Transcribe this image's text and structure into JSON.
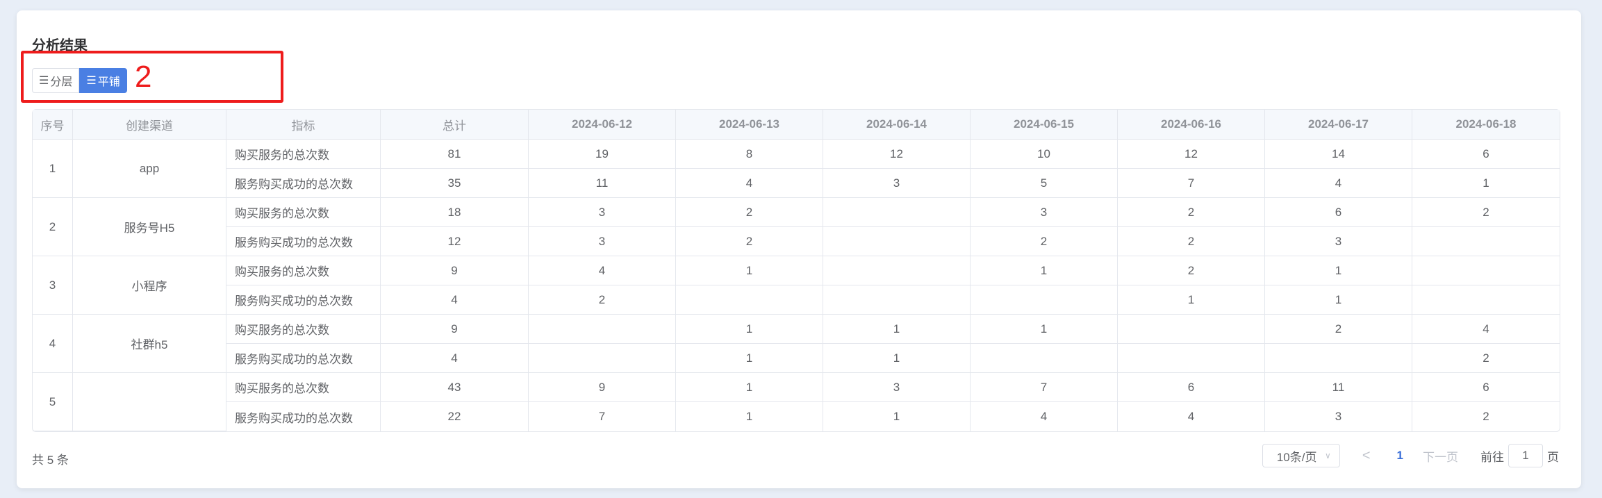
{
  "title": "分析结果",
  "annotation": {
    "label": "2",
    "color": "#ee1c1c"
  },
  "view_toggle": {
    "layered": "分层",
    "flat": "平铺",
    "active": "flat",
    "icon": "list-icon",
    "accent": "#4a7fe3"
  },
  "table": {
    "headers": [
      "序号",
      "创建渠道",
      "指标",
      "总计",
      "2024-06-12",
      "2024-06-13",
      "2024-06-14",
      "2024-06-15",
      "2024-06-16",
      "2024-06-17",
      "2024-06-18"
    ],
    "groups": [
      {
        "index": "1",
        "channel": "app",
        "rows": [
          {
            "metric": "购买服务的总次数",
            "values": [
              "81",
              "19",
              "8",
              "12",
              "10",
              "12",
              "14",
              "6"
            ]
          },
          {
            "metric": "服务购买成功的总次数",
            "values": [
              "35",
              "11",
              "4",
              "3",
              "5",
              "7",
              "4",
              "1"
            ]
          }
        ]
      },
      {
        "index": "2",
        "channel": "服务号H5",
        "rows": [
          {
            "metric": "购买服务的总次数",
            "values": [
              "18",
              "3",
              "2",
              "",
              "3",
              "2",
              "6",
              "2"
            ]
          },
          {
            "metric": "服务购买成功的总次数",
            "values": [
              "12",
              "3",
              "2",
              "",
              "2",
              "2",
              "3",
              ""
            ]
          }
        ]
      },
      {
        "index": "3",
        "channel": "小程序",
        "rows": [
          {
            "metric": "购买服务的总次数",
            "values": [
              "9",
              "4",
              "1",
              "",
              "1",
              "2",
              "1",
              ""
            ]
          },
          {
            "metric": "服务购买成功的总次数",
            "values": [
              "4",
              "2",
              "",
              "",
              "",
              "1",
              "1",
              ""
            ]
          }
        ]
      },
      {
        "index": "4",
        "channel": "社群h5",
        "rows": [
          {
            "metric": "购买服务的总次数",
            "values": [
              "9",
              "",
              "1",
              "1",
              "1",
              "",
              "2",
              "4"
            ]
          },
          {
            "metric": "服务购买成功的总次数",
            "values": [
              "4",
              "",
              "1",
              "1",
              "",
              "",
              "",
              "2"
            ]
          }
        ]
      },
      {
        "index": "5",
        "channel": "",
        "rows": [
          {
            "metric": "购买服务的总次数",
            "values": [
              "43",
              "9",
              "1",
              "3",
              "7",
              "6",
              "11",
              "6"
            ]
          },
          {
            "metric": "服务购买成功的总次数",
            "values": [
              "22",
              "7",
              "1",
              "1",
              "4",
              "4",
              "3",
              "2"
            ]
          }
        ]
      }
    ]
  },
  "pagination": {
    "total": "共 5 条",
    "page_size": "10条/页",
    "prev": "<",
    "current": "1",
    "next": "下一页",
    "goto": "前往",
    "goto_value": "1",
    "page_unit": "页"
  }
}
